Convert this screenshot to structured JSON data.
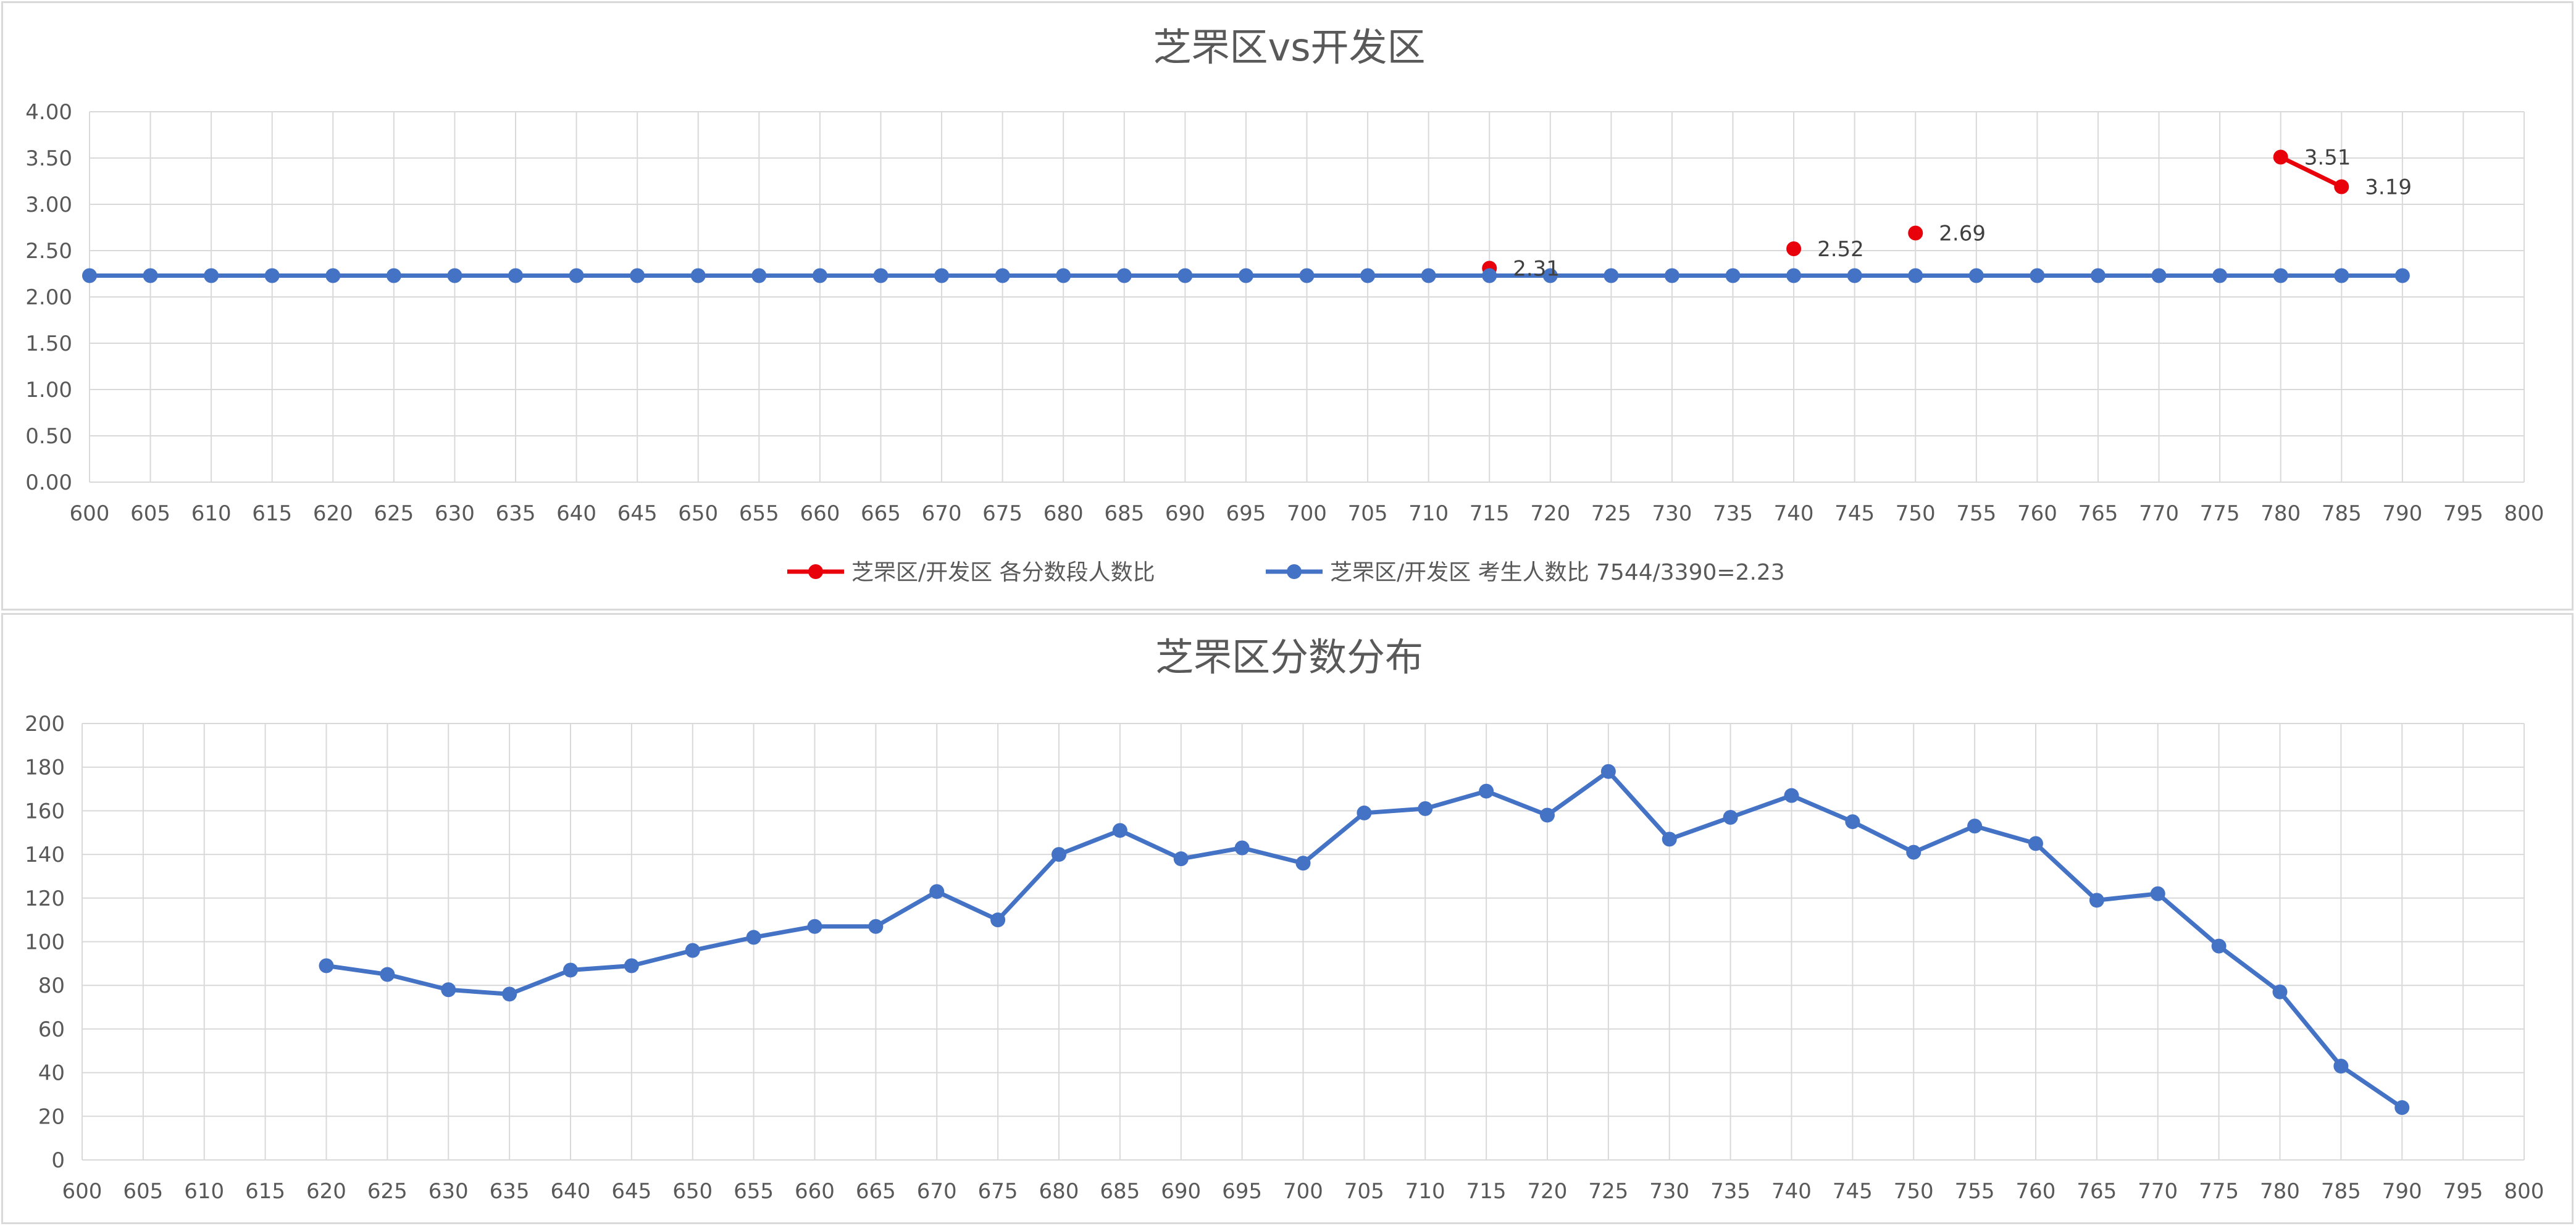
{
  "chart_data": [
    {
      "type": "line",
      "title": "芝罘区vs开发区",
      "x_ticks": [
        600,
        605,
        610,
        615,
        620,
        625,
        630,
        635,
        640,
        645,
        650,
        655,
        660,
        665,
        670,
        675,
        680,
        685,
        690,
        695,
        700,
        705,
        710,
        715,
        720,
        725,
        730,
        735,
        740,
        745,
        750,
        755,
        760,
        765,
        770,
        775,
        780,
        785,
        790,
        795,
        800
      ],
      "x_range": [
        600,
        800
      ],
      "y_ticks": [
        "0.00",
        "0.50",
        "1.00",
        "1.50",
        "2.00",
        "2.50",
        "3.00",
        "3.50",
        "4.00"
      ],
      "ylim": [
        0,
        4
      ],
      "grid": true,
      "legend_position": "bottom",
      "series": [
        {
          "name": "芝罘区/开发区 各分数段人数比",
          "color": "#e8000b",
          "data_labels": true,
          "points": [
            [
              715,
              2.31
            ],
            [
              740,
              2.52
            ],
            [
              750,
              2.69
            ],
            [
              780,
              3.51
            ],
            [
              785,
              3.19
            ]
          ],
          "segments": [
            [
              [
                780,
                3.51
              ],
              [
                785,
                3.19
              ]
            ]
          ]
        },
        {
          "name": "芝罘区/开发区 考生人数比 7544/3390=2.23",
          "color": "#4472c4",
          "data_labels": false,
          "points": [
            [
              600,
              2.23
            ],
            [
              605,
              2.23
            ],
            [
              610,
              2.23
            ],
            [
              615,
              2.23
            ],
            [
              620,
              2.23
            ],
            [
              625,
              2.23
            ],
            [
              630,
              2.23
            ],
            [
              635,
              2.23
            ],
            [
              640,
              2.23
            ],
            [
              645,
              2.23
            ],
            [
              650,
              2.23
            ],
            [
              655,
              2.23
            ],
            [
              660,
              2.23
            ],
            [
              665,
              2.23
            ],
            [
              670,
              2.23
            ],
            [
              675,
              2.23
            ],
            [
              680,
              2.23
            ],
            [
              685,
              2.23
            ],
            [
              690,
              2.23
            ],
            [
              695,
              2.23
            ],
            [
              700,
              2.23
            ],
            [
              705,
              2.23
            ],
            [
              710,
              2.23
            ],
            [
              715,
              2.23
            ],
            [
              720,
              2.23
            ],
            [
              725,
              2.23
            ],
            [
              730,
              2.23
            ],
            [
              735,
              2.23
            ],
            [
              740,
              2.23
            ],
            [
              745,
              2.23
            ],
            [
              750,
              2.23
            ],
            [
              755,
              2.23
            ],
            [
              760,
              2.23
            ],
            [
              765,
              2.23
            ],
            [
              770,
              2.23
            ],
            [
              775,
              2.23
            ],
            [
              780,
              2.23
            ],
            [
              785,
              2.23
            ],
            [
              790,
              2.23
            ]
          ]
        }
      ]
    },
    {
      "type": "line",
      "title": "芝罘区分数分布",
      "x_ticks": [
        600,
        605,
        610,
        615,
        620,
        625,
        630,
        635,
        640,
        645,
        650,
        655,
        660,
        665,
        670,
        675,
        680,
        685,
        690,
        695,
        700,
        705,
        710,
        715,
        720,
        725,
        730,
        735,
        740,
        745,
        750,
        755,
        760,
        765,
        770,
        775,
        780,
        785,
        790,
        795,
        800
      ],
      "x_range": [
        600,
        800
      ],
      "y_ticks": [
        "0",
        "20",
        "40",
        "60",
        "80",
        "100",
        "120",
        "140",
        "160",
        "180",
        "200"
      ],
      "ylim": [
        0,
        200
      ],
      "grid": true,
      "series": [
        {
          "color": "#4472c4",
          "points": [
            [
              620,
              89
            ],
            [
              625,
              85
            ],
            [
              630,
              78
            ],
            [
              635,
              76
            ],
            [
              640,
              87
            ],
            [
              645,
              89
            ],
            [
              650,
              96
            ],
            [
              655,
              102
            ],
            [
              660,
              107
            ],
            [
              665,
              107
            ],
            [
              670,
              123
            ],
            [
              675,
              110
            ],
            [
              680,
              140
            ],
            [
              685,
              151
            ],
            [
              690,
              138
            ],
            [
              695,
              143
            ],
            [
              700,
              136
            ],
            [
              705,
              159
            ],
            [
              710,
              161
            ],
            [
              715,
              169
            ],
            [
              720,
              158
            ],
            [
              725,
              178
            ],
            [
              730,
              147
            ],
            [
              735,
              157
            ],
            [
              740,
              167
            ],
            [
              745,
              155
            ],
            [
              750,
              141
            ],
            [
              755,
              153
            ],
            [
              760,
              145
            ],
            [
              765,
              119
            ],
            [
              770,
              122
            ],
            [
              775,
              98
            ],
            [
              780,
              77
            ],
            [
              785,
              43
            ],
            [
              790,
              24
            ]
          ]
        }
      ]
    }
  ]
}
